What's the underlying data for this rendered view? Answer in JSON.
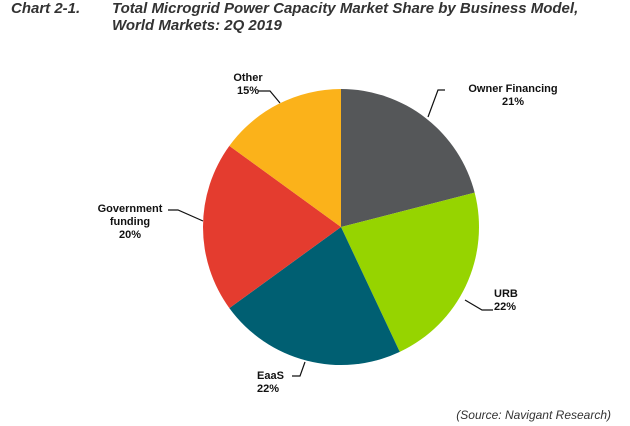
{
  "header": {
    "chart_number": "Chart 2-1.",
    "title_line1": "Total Microgrid Power Capacity Market Share by Business Model,",
    "title_line2": "World Markets: 2Q 2019"
  },
  "labels": {
    "owner_financing": {
      "name": "Owner Financing",
      "pct": "21%"
    },
    "urb": {
      "name": "URB",
      "pct": "22%"
    },
    "eaas": {
      "name": "EaaS",
      "pct": "22%"
    },
    "government": {
      "name_line1": "Government",
      "name_line2": "funding",
      "pct": "20%"
    },
    "other": {
      "name": "Other",
      "pct": "15%"
    }
  },
  "source": "(Source: Navigant Research)",
  "colors": {
    "owner_financing": "#555759",
    "urb": "#96d400",
    "eaas": "#005f72",
    "government": "#e43c2f",
    "other": "#fbb21a"
  },
  "chart_data": {
    "type": "pie",
    "title": "Total Microgrid Power Capacity Market Share by Business Model, World Markets: 2Q 2019",
    "categories": [
      "Owner Financing",
      "URB",
      "EaaS",
      "Government funding",
      "Other"
    ],
    "values": [
      21,
      22,
      22,
      20,
      15
    ],
    "unit": "%",
    "start_angle": "12 o'clock, clockwise",
    "colors": [
      "#555759",
      "#96d400",
      "#005f72",
      "#e43c2f",
      "#fbb21a"
    ],
    "source": "(Source: Navigant Research)",
    "legend": "none (direct labels with leader lines)"
  }
}
